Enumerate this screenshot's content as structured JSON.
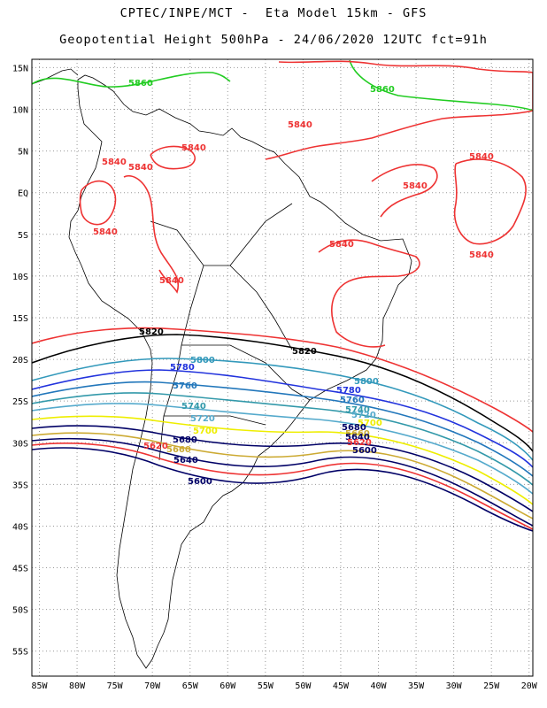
{
  "header": {
    "line1": "CPTEC/INPE/MCT -  Eta Model 15km - GFS",
    "line2": "Geopotential Height 500hPa - 24/06/2020 12UTC fct=91h"
  },
  "chart_data": {
    "type": "contour-map",
    "variable": "Geopotential Height 500hPa",
    "lon_range": [
      -86,
      -19.5
    ],
    "lat_range": [
      -58,
      16
    ],
    "x_ticks": [
      "85W",
      "80W",
      "75W",
      "70W",
      "65W",
      "60W",
      "55W",
      "50W",
      "45W",
      "40W",
      "35W",
      "30W",
      "25W",
      "20W"
    ],
    "y_ticks": [
      "15N",
      "10N",
      "5N",
      "EQ",
      "5S",
      "10S",
      "15S",
      "20S",
      "25S",
      "30S",
      "35S",
      "40S",
      "45S",
      "50S",
      "55S"
    ],
    "grid": "dotted",
    "contours": [
      {
        "value": "5860",
        "color": "#22cc22",
        "labels": [
          "5860",
          "5860"
        ]
      },
      {
        "value": "5840",
        "color": "#ee3333",
        "labels": [
          "5840",
          "5840",
          "5840",
          "5840",
          "5840",
          "5840",
          "5840",
          "5840",
          "5840",
          "5840"
        ]
      },
      {
        "value": "5820",
        "color": "#000000",
        "labels": [
          "5820",
          "5820"
        ]
      },
      {
        "value": "5800",
        "color": "#3399bb",
        "labels": [
          "5800",
          "5800"
        ]
      },
      {
        "value": "5780",
        "color": "#2233dd",
        "labels": [
          "5780",
          "5780"
        ]
      },
      {
        "value": "5760",
        "color": "#2277bb",
        "labels": [
          "5760",
          "5760"
        ]
      },
      {
        "value": "5740",
        "color": "#3399aa",
        "labels": [
          "5740",
          "5740"
        ]
      },
      {
        "value": "5720",
        "color": "#55aacc",
        "labels": [
          "5720",
          "5720"
        ]
      },
      {
        "value": "5700",
        "color": "#eeee00",
        "labels": [
          "5700",
          "5700"
        ]
      },
      {
        "value": "5680",
        "color": "#000066",
        "labels": [
          "5680",
          "5680"
        ]
      },
      {
        "value": "5660",
        "color": "#ccaa33",
        "labels": [
          "5660",
          "5660"
        ]
      },
      {
        "value": "5640",
        "color": "#000066",
        "labels": [
          "5640",
          "5640"
        ]
      },
      {
        "value": "5620",
        "color": "#ee3333",
        "labels": [
          "5620",
          "5620"
        ]
      },
      {
        "value": "5600",
        "color": "#000066",
        "labels": [
          "5600",
          "5600"
        ]
      }
    ]
  }
}
